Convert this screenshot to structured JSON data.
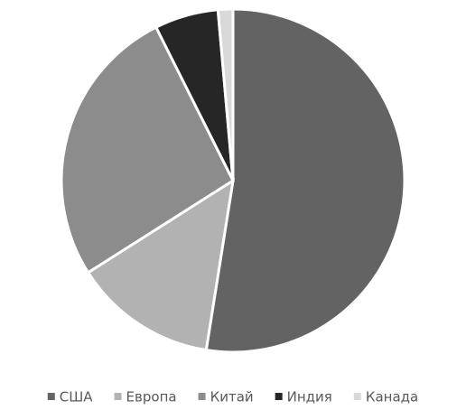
{
  "chart_data": {
    "type": "pie",
    "categories": [
      "США",
      "Европа",
      "Китай",
      "Индия",
      "Канада"
    ],
    "values": [
      52.5,
      13.5,
      26.6,
      6,
      1.4
    ],
    "colors": [
      "#636363",
      "#b2b2b2",
      "#8c8c8c",
      "#262626",
      "#d9d9d9"
    ],
    "legend": "bottom"
  }
}
